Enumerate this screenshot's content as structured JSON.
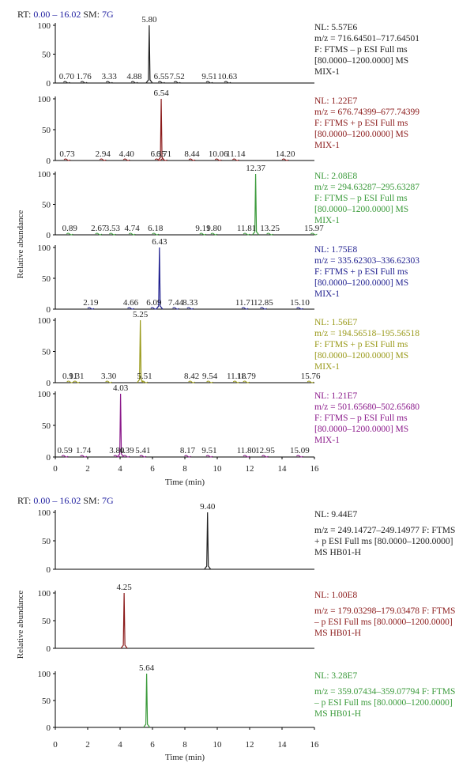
{
  "chart_data": [
    {
      "type": "line",
      "header": {
        "rt_label": "RT:",
        "rt_range": "0.00 – 16.02",
        "sm_label": "SM:",
        "sm_value": "7G"
      },
      "xlabel": "Time (min)",
      "ylabel": "Relative abundance",
      "xlim": [
        0,
        16
      ],
      "ylim": [
        0,
        100
      ],
      "xticks": [
        "0",
        "2",
        "4",
        "6",
        "8",
        "10",
        "12",
        "14",
        "16"
      ],
      "yticks": [
        "0",
        "50",
        "100"
      ],
      "series": [
        {
          "color": "#222222",
          "peaks": [
            {
              "x": 5.8,
              "y": 100
            }
          ],
          "labels": [
            {
              "text": "5.80",
              "x": 5.8,
              "y": 100
            },
            {
              "text": "0.70",
              "x": 0.7,
              "y": 0
            },
            {
              "text": "1.76",
              "x": 1.76,
              "y": 0
            },
            {
              "text": "3.33",
              "x": 3.33,
              "y": 0
            },
            {
              "text": "4.88",
              "x": 4.88,
              "y": 0
            },
            {
              "text": "6.55",
              "x": 6.55,
              "y": 0
            },
            {
              "text": "7.52",
              "x": 7.52,
              "y": 0
            },
            {
              "text": "9.51",
              "x": 9.51,
              "y": 0
            },
            {
              "text": "10.63",
              "x": 10.63,
              "y": 0
            }
          ],
          "info": [
            "NL: 5.57E6",
            "m/z = 716.64501–717.64501",
            "F: FTMS – p ESI Full ms",
            "[80.0000–1200.0000] MS",
            "MIX-1"
          ]
        },
        {
          "color": "#8b1a1a",
          "peaks": [
            {
              "x": 6.54,
              "y": 100
            }
          ],
          "labels": [
            {
              "text": "6.54",
              "x": 6.54,
              "y": 100
            },
            {
              "text": "0.73",
              "x": 0.73,
              "y": 0
            },
            {
              "text": "2.94",
              "x": 2.94,
              "y": 0
            },
            {
              "text": "4.40",
              "x": 4.4,
              "y": 0
            },
            {
              "text": "6.35",
              "x": 6.35,
              "y": 0
            },
            {
              "text": "6.71",
              "x": 6.71,
              "y": 0
            },
            {
              "text": "8.44",
              "x": 8.44,
              "y": 0
            },
            {
              "text": "10.06",
              "x": 10.06,
              "y": 0
            },
            {
              "text": "11.14",
              "x": 11.14,
              "y": 0
            },
            {
              "text": "14.20",
              "x": 14.2,
              "y": 0
            }
          ],
          "info": [
            "NL: 1.22E7",
            "m/z = 676.74399–677.74399",
            "F: FTMS + p ESI Full ms",
            "[80.0000–1200.0000] MS",
            "MIX-1"
          ]
        },
        {
          "color": "#3a9a3a",
          "peaks": [
            {
              "x": 12.37,
              "y": 100
            }
          ],
          "labels": [
            {
              "text": "12.37",
              "x": 12.37,
              "y": 100
            },
            {
              "text": "0.89",
              "x": 0.89,
              "y": 0
            },
            {
              "text": "2.67",
              "x": 2.67,
              "y": 0
            },
            {
              "text": "3.53",
              "x": 3.53,
              "y": 0
            },
            {
              "text": "4.74",
              "x": 4.74,
              "y": 0
            },
            {
              "text": "6.18",
              "x": 6.18,
              "y": 0
            },
            {
              "text": "9.11",
              "x": 9.11,
              "y": 0
            },
            {
              "text": "9.80",
              "x": 9.8,
              "y": 0
            },
            {
              "text": "11.81",
              "x": 11.81,
              "y": 0
            },
            {
              "text": "13.25",
              "x": 13.25,
              "y": 0
            },
            {
              "text": "15.97",
              "x": 15.97,
              "y": 0
            }
          ],
          "info": [
            "NL: 2.08E8",
            "m/z = 294.63287–295.63287",
            "F: FTMS – p ESI Full ms",
            "[80.0000–1200.0000] MS",
            "MIX-1"
          ]
        },
        {
          "color": "#1f1f8f",
          "peaks": [
            {
              "x": 6.43,
              "y": 100
            }
          ],
          "labels": [
            {
              "text": "6.43",
              "x": 6.43,
              "y": 100
            },
            {
              "text": "2.19",
              "x": 2.19,
              "y": 0
            },
            {
              "text": "4.66",
              "x": 4.66,
              "y": 0
            },
            {
              "text": "6.09",
              "x": 6.09,
              "y": 0
            },
            {
              "text": "7.44",
              "x": 7.44,
              "y": 0
            },
            {
              "text": "8.33",
              "x": 8.33,
              "y": 0
            },
            {
              "text": "11.71",
              "x": 11.71,
              "y": 0
            },
            {
              "text": "12.85",
              "x": 12.85,
              "y": 0
            },
            {
              "text": "15.10",
              "x": 15.1,
              "y": 0
            }
          ],
          "info": [
            "NL: 1.75E8",
            "m/z = 335.62303–336.62303",
            "F: FTMS + p ESI Full ms",
            "[80.0000–1200.0000] MS",
            "MIX-1"
          ]
        },
        {
          "color": "#9a9a1a",
          "peaks": [
            {
              "x": 5.25,
              "y": 100
            }
          ],
          "labels": [
            {
              "text": "5.25",
              "x": 5.25,
              "y": 100
            },
            {
              "text": "0.91",
              "x": 0.91,
              "y": 0
            },
            {
              "text": "1.31",
              "x": 1.31,
              "y": 0
            },
            {
              "text": "3.30",
              "x": 3.3,
              "y": 0
            },
            {
              "text": "5.51",
              "x": 5.51,
              "y": 0
            },
            {
              "text": "8.42",
              "x": 8.42,
              "y": 0
            },
            {
              "text": "9.54",
              "x": 9.54,
              "y": 0
            },
            {
              "text": "11.18",
              "x": 11.18,
              "y": 0
            },
            {
              "text": "11.79",
              "x": 11.79,
              "y": 0
            },
            {
              "text": "15.76",
              "x": 15.76,
              "y": 0
            }
          ],
          "info": [
            "NL: 1.56E7",
            "m/z = 194.56518–195.56518",
            "F: FTMS + p ESI Full ms",
            "[80.0000–1200.0000] MS",
            "MIX-1"
          ]
        },
        {
          "color": "#8b1a8b",
          "peaks": [
            {
              "x": 4.03,
              "y": 100
            }
          ],
          "labels": [
            {
              "text": "4.03",
              "x": 4.03,
              "y": 100
            },
            {
              "text": "0.59",
              "x": 0.59,
              "y": 0
            },
            {
              "text": "1.74",
              "x": 1.74,
              "y": 0
            },
            {
              "text": "3.80",
              "x": 3.8,
              "y": 0
            },
            {
              "text": "4.39",
              "x": 4.39,
              "y": 0
            },
            {
              "text": "5.41",
              "x": 5.41,
              "y": 0
            },
            {
              "text": "8.17",
              "x": 8.17,
              "y": 0
            },
            {
              "text": "9.51",
              "x": 9.51,
              "y": 0
            },
            {
              "text": "11.80",
              "x": 11.8,
              "y": 0
            },
            {
              "text": "12.95",
              "x": 12.95,
              "y": 0
            },
            {
              "text": "15.09",
              "x": 15.09,
              "y": 0
            }
          ],
          "info": [
            "NL: 1.21E7",
            "m/z = 501.65680–502.65680",
            "F: FTMS – p ESI Full ms",
            "[80.0000–1200.0000] MS",
            "MIX-1"
          ]
        }
      ]
    },
    {
      "type": "line",
      "header": {
        "rt_label": "RT:",
        "rt_range": "0.00 – 16.02",
        "sm_label": "SM:",
        "sm_value": "7G"
      },
      "xlabel": "Time (min)",
      "ylabel": "Relative abundance",
      "xlim": [
        0,
        16
      ],
      "ylim": [
        0,
        100
      ],
      "xticks": [
        "0",
        "2",
        "4",
        "6",
        "8",
        "10",
        "12",
        "14",
        "16"
      ],
      "yticks": [
        "0",
        "50",
        "100"
      ],
      "series": [
        {
          "color": "#222222",
          "peaks": [
            {
              "x": 9.4,
              "y": 100
            }
          ],
          "labels": [
            {
              "text": "9.40",
              "x": 9.4,
              "y": 100
            }
          ],
          "info": [
            "NL: 9.44E7",
            "m/z = 249.14727–249.14977 F: FTMS",
            "+ p ESI Full ms [80.0000–1200.0000]",
            "MS HB01-H"
          ]
        },
        {
          "color": "#8b1a1a",
          "peaks": [
            {
              "x": 4.25,
              "y": 100
            }
          ],
          "labels": [
            {
              "text": "4.25",
              "x": 4.25,
              "y": 100
            }
          ],
          "info": [
            "NL: 1.00E8",
            "m/z = 179.03298–179.03478 F: FTMS",
            "– p ESI Full ms [80.0000–1200.0000]",
            "MS HB01-H"
          ]
        },
        {
          "color": "#3a9a3a",
          "peaks": [
            {
              "x": 5.64,
              "y": 100
            }
          ],
          "labels": [
            {
              "text": "5.64",
              "x": 5.64,
              "y": 100
            }
          ],
          "info": [
            "NL: 3.28E7",
            "m/z = 359.07434–359.07794 F: FTMS",
            "– p ESI Full ms [80.0000–1200.0000]",
            "MS HB01-H"
          ]
        }
      ]
    }
  ]
}
